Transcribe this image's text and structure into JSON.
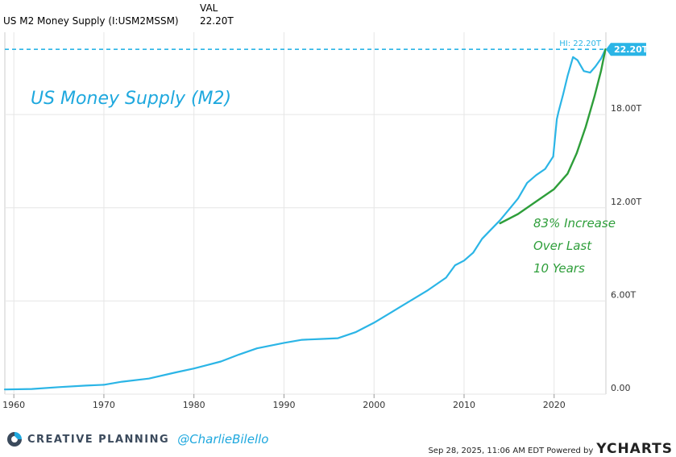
{
  "header": {
    "column_label": "VAL",
    "series_name": "US M2 Money Supply (I:USM2MSSM)",
    "series_value": "22.20T"
  },
  "brand": {
    "name": "CREATIVE PLANNING",
    "handle": "@CharlieBilello"
  },
  "footer": {
    "timestamp": "Sep 28, 2025, 11:06 AM EDT Powered by",
    "provider": "YCHARTS"
  },
  "colors": {
    "series": "#2bb5e6",
    "annotation": "#2e9e3a",
    "grid": "#e6e6e6"
  },
  "chart_data": {
    "type": "line",
    "title": "US Money Supply (M2)",
    "xlabel": "",
    "ylabel": "",
    "xlim": [
      1959,
      2025.75
    ],
    "ylim": [
      0,
      23.3
    ],
    "x_ticks": [
      1960,
      1970,
      1980,
      1990,
      2000,
      2010,
      2020
    ],
    "x_tick_labels": [
      "1960",
      "1970",
      "1980",
      "1990",
      "2000",
      "2010",
      "2020"
    ],
    "y_ticks": [
      0,
      6,
      12,
      18
    ],
    "y_tick_labels": [
      "0.00",
      "6.00T",
      "12.00T",
      "18.00T"
    ],
    "high_label": "HI: 22.20T",
    "high_value": 22.2,
    "last_label": "22.20T",
    "series": [
      {
        "name": "US M2 Money Supply",
        "x": [
          1959,
          1962,
          1965,
          1968,
          1970,
          1972,
          1975,
          1978,
          1980,
          1983,
          1985,
          1987,
          1990,
          1992,
          1994,
          1996,
          1998,
          2000,
          2002,
          2004,
          2006,
          2008,
          2009,
          2010,
          2011,
          2012,
          2013,
          2014,
          2015,
          2016,
          2017,
          2018,
          2019,
          2019.9,
          2020.3,
          2020.5,
          2021,
          2021.5,
          2022.1,
          2022.6,
          2023.3,
          2024,
          2024.6,
          2025.2,
          2025.7
        ],
        "values": [
          0.3,
          0.33,
          0.45,
          0.55,
          0.6,
          0.8,
          1.0,
          1.4,
          1.65,
          2.1,
          2.55,
          2.95,
          3.3,
          3.5,
          3.55,
          3.6,
          4.0,
          4.6,
          5.3,
          6.0,
          6.7,
          7.5,
          8.3,
          8.6,
          9.1,
          10.0,
          10.6,
          11.2,
          11.9,
          12.6,
          13.6,
          14.1,
          14.5,
          15.3,
          17.7,
          18.2,
          19.3,
          20.5,
          21.7,
          21.5,
          20.8,
          20.7,
          21.1,
          21.6,
          22.2
        ]
      },
      {
        "name": "Trend annotation",
        "x": [
          2014,
          2016,
          2018,
          2020,
          2021.5,
          2022.5,
          2023.5,
          2024.5,
          2025.2,
          2025.7
        ],
        "values": [
          11.0,
          11.6,
          12.4,
          13.2,
          14.2,
          15.5,
          17.2,
          19.2,
          20.8,
          22.2
        ]
      }
    ],
    "annotations": [
      "83% Increase",
      "Over Last",
      "10 Years"
    ]
  }
}
